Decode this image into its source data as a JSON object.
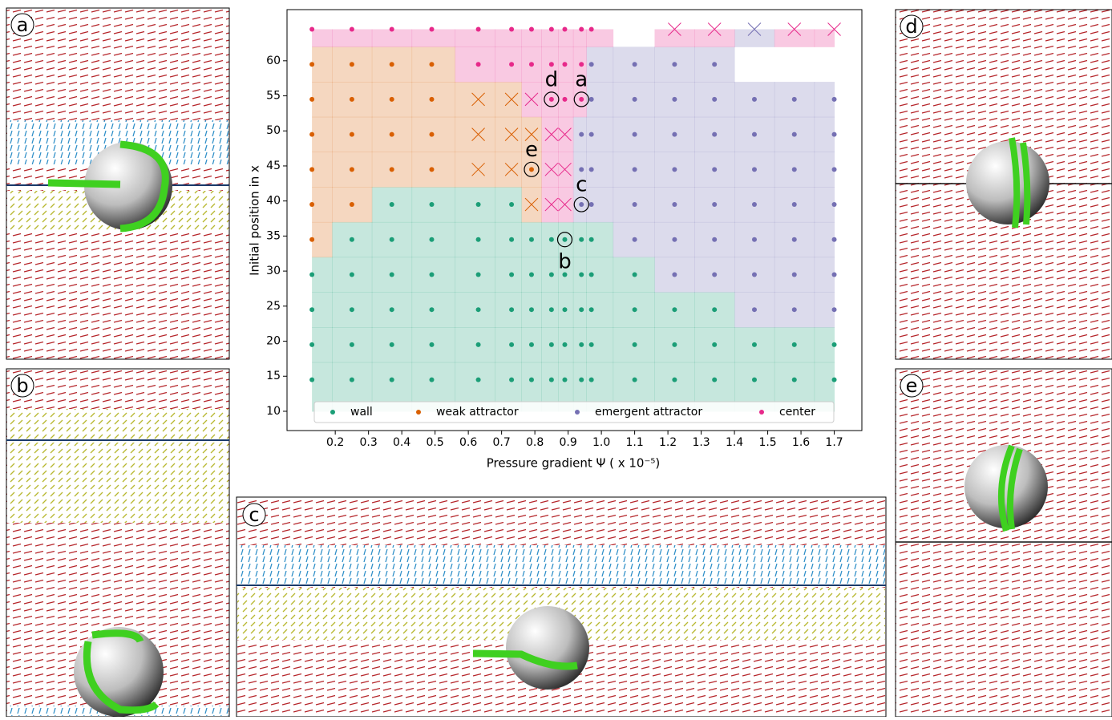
{
  "chart_data": {
    "type": "scatter",
    "xlabel": "Pressure gradient Ψ ( x 10⁻⁵)",
    "ylabel": "Initial position in x",
    "xlim": [
      0.055,
      1.783
    ],
    "ylim": [
      7.25,
      67.3
    ],
    "xticks": [
      0.2,
      0.3,
      0.4,
      0.5,
      0.6,
      0.7,
      0.8,
      0.9,
      {
        "value": 1,
        "label": "1.0"
      },
      1.1,
      1.2,
      1.3,
      1.4,
      1.5,
      1.6,
      1.7
    ],
    "yticks": [
      10,
      15,
      20,
      25,
      30,
      35,
      40,
      45,
      50,
      55,
      60
    ],
    "legend": "bottom",
    "series": [
      {
        "name": "wall",
        "color": "#1b9e77",
        "x": [
          0.13,
          0.13,
          0.13,
          0.13,
          0.25,
          0.25,
          0.25,
          0.25,
          0.25,
          0.37,
          0.37,
          0.37,
          0.37,
          0.37,
          0.37,
          0.49,
          0.49,
          0.49,
          0.49,
          0.49,
          0.49,
          0.63,
          0.63,
          0.63,
          0.63,
          0.63,
          0.63,
          0.73,
          0.73,
          0.73,
          0.73,
          0.73,
          0.73,
          0.79,
          0.79,
          0.79,
          0.79,
          0.79,
          0.85,
          0.85,
          0.85,
          0.85,
          0.85,
          0.89,
          0.89,
          0.89,
          0.89,
          0.89,
          0.94,
          0.94,
          0.94,
          0.94,
          0.94,
          0.97,
          0.97,
          0.97,
          0.97,
          0.97,
          1.1,
          1.1,
          1.1,
          1.1,
          1.22,
          1.22,
          1.22,
          1.34,
          1.34,
          1.34,
          1.46,
          1.46,
          1.58,
          1.58,
          1.7,
          1.7
        ],
        "values": [
          14.5,
          19.5,
          24.5,
          29.5,
          14.5,
          19.5,
          24.5,
          29.5,
          34.5,
          14.5,
          19.5,
          24.5,
          29.5,
          34.5,
          39.5,
          14.5,
          19.5,
          24.5,
          29.5,
          34.5,
          39.5,
          14.5,
          19.5,
          24.5,
          29.5,
          34.5,
          39.5,
          14.5,
          19.5,
          24.5,
          29.5,
          34.5,
          39.5,
          14.5,
          19.5,
          24.5,
          29.5,
          34.5,
          14.5,
          19.5,
          24.5,
          29.5,
          34.5,
          14.5,
          19.5,
          24.5,
          29.5,
          34.5,
          14.5,
          19.5,
          24.5,
          29.5,
          34.5,
          14.5,
          19.5,
          24.5,
          29.5,
          34.5,
          14.5,
          19.5,
          24.5,
          29.5,
          14.5,
          19.5,
          24.5,
          14.5,
          19.5,
          24.5,
          14.5,
          19.5,
          14.5,
          19.5,
          14.5,
          19.5
        ]
      },
      {
        "name": "weak attractor",
        "color": "#d95f02",
        "x": [
          0.13,
          0.13,
          0.13,
          0.13,
          0.13,
          0.13,
          0.25,
          0.25,
          0.25,
          0.25,
          0.25,
          0.37,
          0.37,
          0.37,
          0.37,
          0.49,
          0.49,
          0.49,
          0.49,
          0.63,
          0.63,
          0.63,
          0.73,
          0.73,
          0.73,
          0.79,
          0.79,
          0.79
        ],
        "values": [
          34.5,
          39.5,
          44.5,
          49.5,
          54.5,
          59.5,
          39.5,
          44.5,
          49.5,
          54.5,
          59.5,
          44.5,
          49.5,
          54.5,
          59.5,
          44.5,
          49.5,
          54.5,
          59.5,
          44.5,
          49.5,
          54.5,
          44.5,
          49.5,
          54.5,
          39.5,
          44.5,
          49.5
        ],
        "markers": [
          "o",
          "o",
          "o",
          "o",
          "o",
          "o",
          "o",
          "o",
          "o",
          "o",
          "o",
          "o",
          "o",
          "o",
          "o",
          "o",
          "o",
          "o",
          "o",
          "x",
          "x",
          "x",
          "x",
          "x",
          "x",
          "x",
          "o",
          "x"
        ]
      },
      {
        "name": "emergent attractor",
        "color": "#7570b3",
        "x": [
          0.94,
          0.94,
          0.94,
          0.97,
          0.97,
          0.97,
          0.97,
          0.97,
          1.1,
          1.1,
          1.1,
          1.1,
          1.1,
          1.1,
          1.22,
          1.22,
          1.22,
          1.22,
          1.22,
          1.22,
          1.22,
          1.34,
          1.34,
          1.34,
          1.34,
          1.34,
          1.34,
          1.34,
          1.46,
          1.46,
          1.46,
          1.46,
          1.46,
          1.46,
          1.46,
          1.46,
          1.58,
          1.58,
          1.58,
          1.58,
          1.58,
          1.58,
          1.58,
          1.7,
          1.7,
          1.7,
          1.7,
          1.7,
          1.7,
          1.7
        ],
        "values": [
          39.5,
          44.5,
          49.5,
          39.5,
          44.5,
          49.5,
          54.5,
          59.5,
          34.5,
          39.5,
          44.5,
          49.5,
          54.5,
          59.5,
          29.5,
          34.5,
          39.5,
          44.5,
          49.5,
          54.5,
          59.5,
          29.5,
          34.5,
          39.5,
          44.5,
          49.5,
          54.5,
          59.5,
          24.5,
          29.5,
          34.5,
          39.5,
          44.5,
          49.5,
          54.5,
          64.5,
          24.5,
          29.5,
          34.5,
          39.5,
          44.5,
          49.5,
          54.5,
          24.5,
          29.5,
          34.5,
          39.5,
          44.5,
          49.5,
          54.5
        ],
        "markers": [
          "o",
          "o",
          "o",
          "o",
          "o",
          "o",
          "o",
          "o",
          "o",
          "o",
          "o",
          "o",
          "o",
          "o",
          "o",
          "o",
          "o",
          "o",
          "o",
          "o",
          "o",
          "o",
          "o",
          "o",
          "o",
          "o",
          "o",
          "o",
          "o",
          "o",
          "o",
          "o",
          "o",
          "o",
          "o",
          "x",
          "o",
          "o",
          "o",
          "o",
          "o",
          "o",
          "o",
          "o",
          "o",
          "o",
          "o",
          "o",
          "o",
          "o"
        ]
      },
      {
        "name": "center",
        "color": "#e7298a",
        "x": [
          0.13,
          0.25,
          0.37,
          0.49,
          0.63,
          0.63,
          0.73,
          0.73,
          0.79,
          0.79,
          0.79,
          0.85,
          0.85,
          0.85,
          0.85,
          0.85,
          0.85,
          0.89,
          0.89,
          0.89,
          0.89,
          0.89,
          0.89,
          0.94,
          0.94,
          0.94,
          0.97,
          1.22,
          1.34,
          1.58,
          1.7
        ],
        "values": [
          64.5,
          64.5,
          64.5,
          64.5,
          59.5,
          64.5,
          59.5,
          64.5,
          54.5,
          59.5,
          64.5,
          39.5,
          44.5,
          49.5,
          54.5,
          59.5,
          64.5,
          39.5,
          44.5,
          49.5,
          54.5,
          59.5,
          64.5,
          54.5,
          59.5,
          64.5,
          64.5,
          64.5,
          64.5,
          64.5,
          64.5
        ],
        "markers": [
          "o",
          "o",
          "o",
          "o",
          "o",
          "o",
          "o",
          "o",
          "x",
          "o",
          "o",
          "x",
          "x",
          "x",
          "o",
          "o",
          "o",
          "x",
          "x",
          "x",
          "o",
          "o",
          "o",
          "o",
          "o",
          "o",
          "o",
          "x",
          "x",
          "x",
          "x"
        ]
      }
    ],
    "annotations": [
      {
        "text": "a",
        "x": 0.94,
        "y": 54.5,
        "position": "above"
      },
      {
        "text": "b",
        "x": 0.89,
        "y": 34.5,
        "position": "below"
      },
      {
        "text": "c",
        "x": 0.94,
        "y": 39.5,
        "position": "above"
      },
      {
        "text": "d",
        "x": 0.85,
        "y": 54.5,
        "position": "above"
      },
      {
        "text": "e",
        "x": 0.79,
        "y": 44.5,
        "position": "above"
      }
    ]
  },
  "panels": [
    {
      "label": "a"
    },
    {
      "label": "b"
    },
    {
      "label": "c"
    },
    {
      "label": "d"
    },
    {
      "label": "e"
    }
  ]
}
